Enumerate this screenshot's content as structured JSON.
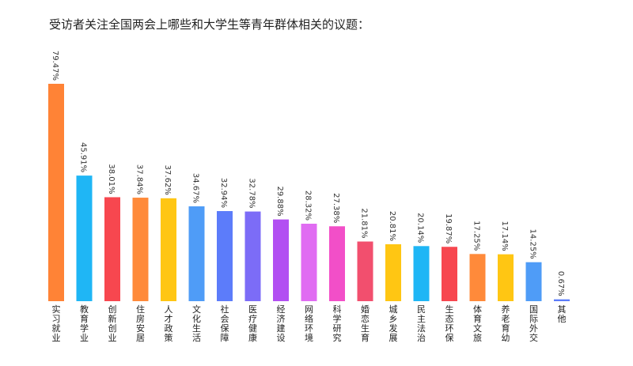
{
  "chart_data": {
    "type": "bar",
    "title": "受访者关注全国两会上哪些和大学生等青年群体相关的议题：",
    "xlabel": "",
    "ylabel": "",
    "ylim": [
      0,
      80
    ],
    "grid": false,
    "legend": "none",
    "categories": [
      "实习就业",
      "教育学业",
      "创新创业",
      "住房安居",
      "人才政策",
      "文化生活",
      "社会保障",
      "医疗健康",
      "经济建设",
      "网络环境",
      "科学研究",
      "婚恋生育",
      "城乡发展",
      "民主法治",
      "生态环保",
      "体育文旅",
      "养老育幼",
      "国际外交",
      "其他"
    ],
    "values": [
      79.47,
      45.91,
      38.01,
      37.84,
      37.62,
      34.67,
      32.94,
      32.78,
      29.88,
      28.32,
      27.38,
      21.81,
      20.81,
      20.14,
      19.87,
      17.25,
      17.14,
      14.25,
      0.67
    ],
    "value_labels": [
      "79.47%",
      "45.91%",
      "38.01%",
      "37.84%",
      "37.62%",
      "34.67%",
      "32.94%",
      "32.78%",
      "29.88%",
      "28.32%",
      "27.38%",
      "21.81%",
      "20.81%",
      "20.14%",
      "19.87%",
      "17.25%",
      "17.14%",
      "14.25%",
      "0.67%"
    ],
    "colors": [
      "#ff8336",
      "#1fb6f5",
      "#f7474f",
      "#ff8a3a",
      "#ffc613",
      "#4f9cf7",
      "#5c7cfa",
      "#7c6cf7",
      "#b24ff2",
      "#e06cf2",
      "#f24fc8",
      "#f24f6e",
      "#ffc613",
      "#1fb6f5",
      "#f7474f",
      "#ff8a3a",
      "#ffc613",
      "#4f9cf7",
      "#5c7cfa"
    ]
  }
}
